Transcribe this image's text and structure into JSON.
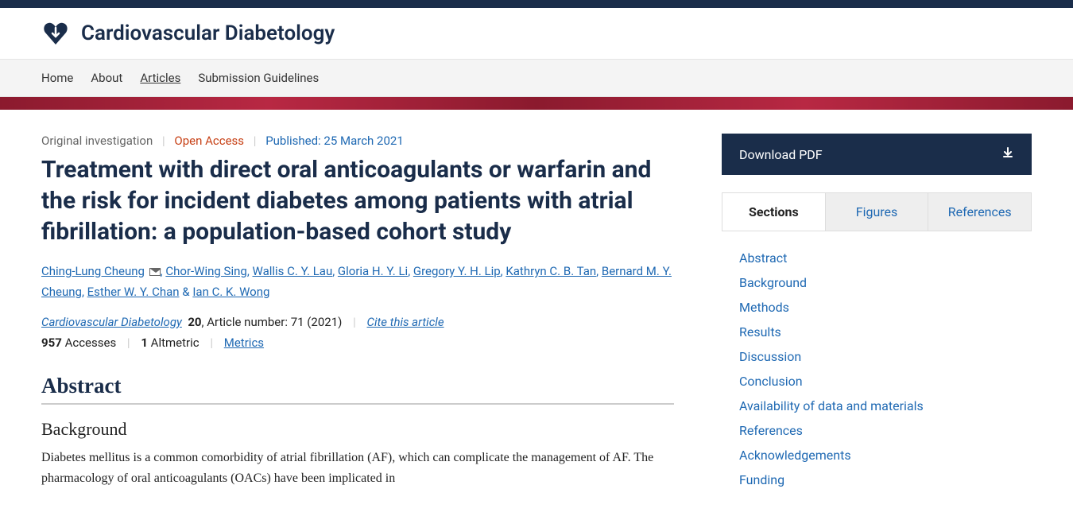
{
  "journal_name": "Cardiovascular Diabetology",
  "nav": {
    "home": "Home",
    "about": "About",
    "articles": "Articles",
    "submission": "Submission Guidelines"
  },
  "meta": {
    "type": "Original investigation",
    "access": "Open Access",
    "published_prefix": "Published: ",
    "published_date": "25 March 2021"
  },
  "title": "Treatment with direct oral anticoagulants or warfarin and the risk for incident diabetes among patients with atrial fibrillation: a population-based cohort study",
  "authors": [
    "Ching-Lung Cheung",
    "Chor-Wing Sing",
    "Wallis C. Y. Lau",
    "Gloria H. Y. Li",
    "Gregory Y. H. Lip",
    "Kathryn C. B. Tan",
    "Bernard M. Y. Cheung",
    "Esther W. Y. Chan",
    "Ian C. K. Wong"
  ],
  "corresponding_index": 0,
  "journal_ref": {
    "journal": "Cardiovascular Diabetology",
    "volume": "20",
    "article_label": ", Article number: 71 (2021)",
    "cite": "Cite this article"
  },
  "stats": {
    "accesses_n": "957",
    "accesses_l": "Accesses",
    "altmetric_n": "1",
    "altmetric_l": "Altmetric",
    "metrics": "Metrics"
  },
  "abstract_heading": "Abstract",
  "background_heading": "Background",
  "background_text": "Diabetes mellitus is a common comorbidity of atrial fibrillation (AF), which can complicate the management of AF. The pharmacology of oral anticoagulants (OACs) have been implicated in",
  "sidebar": {
    "download": "Download PDF",
    "tabs": {
      "sections": "Sections",
      "figures": "Figures",
      "references": "References"
    },
    "toc": [
      "Abstract",
      "Background",
      "Methods",
      "Results",
      "Discussion",
      "Conclusion",
      "Availability of data and materials",
      "References",
      "Acknowledgements",
      "Funding"
    ]
  },
  "colors": {
    "navy": "#1a2d4a",
    "link": "#1f69b3",
    "open_access": "#c74116",
    "banner_a": "#8b1a2e",
    "banner_b": "#b82843"
  }
}
